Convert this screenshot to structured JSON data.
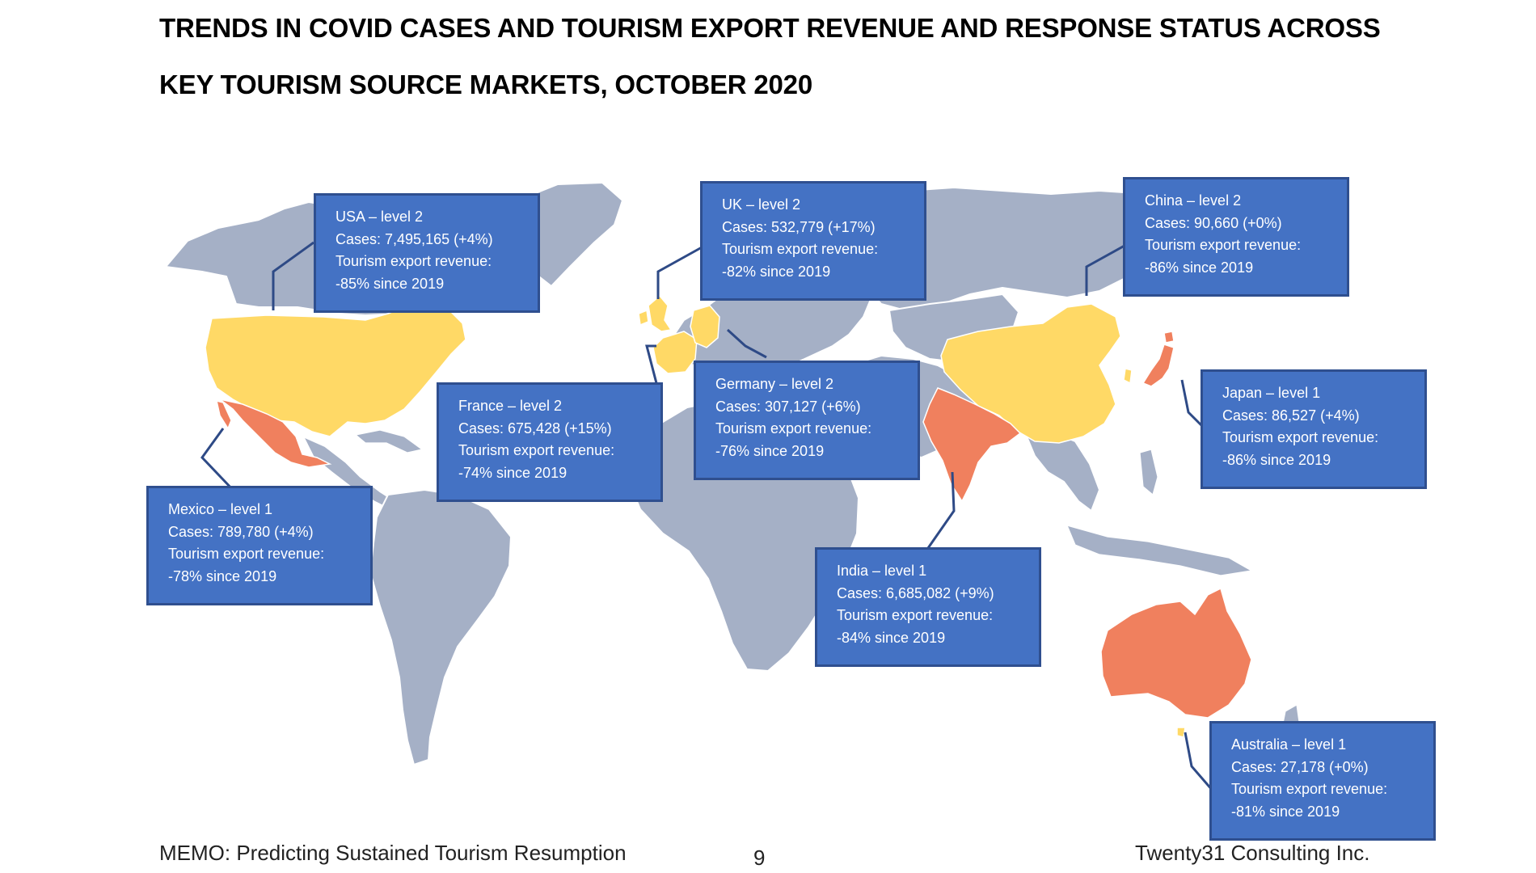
{
  "title": {
    "line1": "TRENDS IN COVID CASES AND TOURISM EXPORT REVENUE AND RESPONSE STATUS ACROSS",
    "line2": "KEY TOURISM SOURCE MARKETS, OCTOBER 2020"
  },
  "colors": {
    "land": "#a5b0c6",
    "level_1": "#f0805e",
    "level_2": "#ffd966",
    "callout_fill": "#4472c4",
    "callout_border": "#2f4f8f"
  },
  "callouts": {
    "usa": {
      "heading": "USA – level 2",
      "cases": "Cases: 7,495,165 (+4%)",
      "revenue_label": "Tourism export revenue:",
      "revenue_value": "-85% since 2019"
    },
    "uk": {
      "heading": "UK – level 2",
      "cases": "Cases: 532,779 (+17%)",
      "revenue_label": "Tourism export revenue:",
      "revenue_value": "-82% since 2019"
    },
    "china": {
      "heading": "China – level 2",
      "cases": "Cases: 90,660 (+0%)",
      "revenue_label": "Tourism export revenue:",
      "revenue_value": "-86% since 2019"
    },
    "france": {
      "heading": "France – level 2",
      "cases": "Cases: 675,428 (+15%)",
      "revenue_label": "Tourism export revenue:",
      "revenue_value": "-74% since 2019"
    },
    "germany": {
      "heading": "Germany – level 2",
      "cases": "Cases: 307,127 (+6%)",
      "revenue_label": "Tourism export revenue:",
      "revenue_value": "-76% since 2019"
    },
    "japan": {
      "heading": "Japan – level 1",
      "cases": "Cases: 86,527 (+4%)",
      "revenue_label": "Tourism export revenue:",
      "revenue_value": "-86% since 2019"
    },
    "mexico": {
      "heading": "Mexico – level 1",
      "cases": "Cases: 789,780 (+4%)",
      "revenue_label": "Tourism export revenue:",
      "revenue_value": "-78% since 2019"
    },
    "india": {
      "heading": "India – level 1",
      "cases": "Cases: 6,685,082 (+9%)",
      "revenue_label": "Tourism export revenue:",
      "revenue_value": "-84% since 2019"
    },
    "australia": {
      "heading": "Australia – level 1",
      "cases": "Cases: 27,178 (+0%)",
      "revenue_label": "Tourism export revenue:",
      "revenue_value": "-81% since 2019"
    }
  },
  "footer": {
    "left": "MEMO: Predicting Sustained Tourism Resumption",
    "page": "9",
    "right": "Twenty31 Consulting Inc."
  }
}
